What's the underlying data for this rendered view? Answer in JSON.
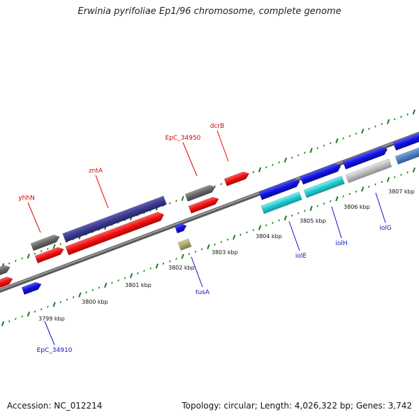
{
  "title": "Erwinia pyrifoliae Ep1/96 chromosome, complete genome",
  "footer": {
    "accession": "Accession: NC_012214",
    "info": "Topology: circular; Length: 4,026,322 bp; Genes: 3,742"
  },
  "scale_labels": [
    "3799 kbp",
    "3800 kbp",
    "3801 kbp",
    "3802 kbp",
    "3803 kbp",
    "3804 kbp",
    "3805 kbp",
    "3806 kbp",
    "3807 kbp"
  ],
  "gene_labels_top": [
    "yhhN",
    "zntA",
    "EpC_34950",
    "dcrB"
  ],
  "gene_labels_bottom": [
    "EpC_34910",
    "tusA",
    "iolE",
    "iolH",
    "iolG"
  ],
  "colors": {
    "red_feature": "#ee1111",
    "gray_feature": "#666666",
    "purple_feature": "#3c3a8e",
    "blue_feature": "#1212dd",
    "cyan_feature": "#1fc9cf",
    "light_gray_feature": "#bbbbbb",
    "steel_feature": "#4a7fbf",
    "olive_feature": "#a8a868",
    "tick_green": "#1a7a1a",
    "backbone": "#777777",
    "label_red": "#d40000",
    "label_blue": "#1010c0"
  }
}
